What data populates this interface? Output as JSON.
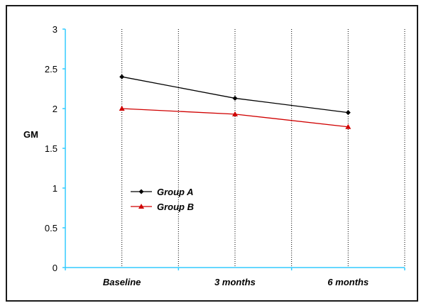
{
  "chart_data": {
    "type": "line",
    "title": "",
    "xlabel": "",
    "ylabel": "GM",
    "categories": [
      "Baseline",
      "3 months",
      "6 months"
    ],
    "ylim": [
      0,
      3
    ],
    "yticks": [
      "0",
      "0.5",
      "1",
      "1.5",
      "2",
      "2.5",
      "3"
    ],
    "grid": "vertical dotted",
    "legend_position": "center-left",
    "series": [
      {
        "name": "Group A",
        "values": [
          2.4,
          2.13,
          1.95
        ],
        "color": "#000000",
        "marker": "diamond"
      },
      {
        "name": "Group B",
        "values": [
          2.0,
          1.93,
          1.77
        ],
        "color": "#d00000",
        "marker": "triangle"
      }
    ],
    "axis_color": "#33ccff"
  }
}
